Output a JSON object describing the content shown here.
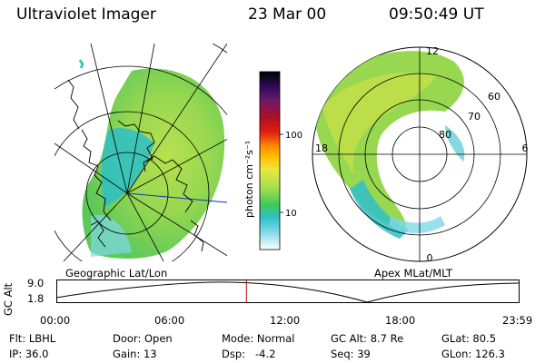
{
  "header": {
    "instrument": "Ultraviolet Imager",
    "date": "23 Mar 00",
    "time": "09:50:49 UT"
  },
  "left_map": {
    "caption": "Geographic Lat/Lon"
  },
  "right_map": {
    "caption": "Apex MLat/MLT",
    "mlt_labels": {
      "top": "12",
      "left": "18",
      "right": "6",
      "bottom": "0"
    },
    "lat_labels": [
      "60",
      "70",
      "80"
    ]
  },
  "colorbar": {
    "unit_label": "photon cm⁻²s⁻¹",
    "tick_labels": [
      "100",
      "10"
    ],
    "colors": [
      "#000000",
      "#1a0a40",
      "#4a1a6a",
      "#7a1a4a",
      "#b01020",
      "#e02010",
      "#ff6a00",
      "#ffb000",
      "#e8e840",
      "#c8e860",
      "#88d860",
      "#40c858",
      "#30c0c8",
      "#60d0e0",
      "#b0e8f0",
      "#ffffff"
    ]
  },
  "altitude_plot": {
    "ylabel": "GC Alt",
    "yticks": [
      "9.0",
      "1.8"
    ],
    "xticks": [
      "00:00",
      "06:00",
      "12:00",
      "18:00",
      "23:59"
    ],
    "current_time_fraction": 0.41,
    "marker_color": "#cc0000"
  },
  "info": {
    "row1": {
      "filter": "Flt: LBHL",
      "door": "Door: Open",
      "mode": "Mode: Normal",
      "gc_alt": "GC Alt: 8.7 Re",
      "glat": "GLat: 80.5"
    },
    "row2": {
      "ip": "IP: 36.0",
      "gain": "Gain: 13",
      "dsp": "Dsp:   -4.2",
      "seq": "Seq: 39",
      "glon": "GLon: 126.3"
    }
  }
}
